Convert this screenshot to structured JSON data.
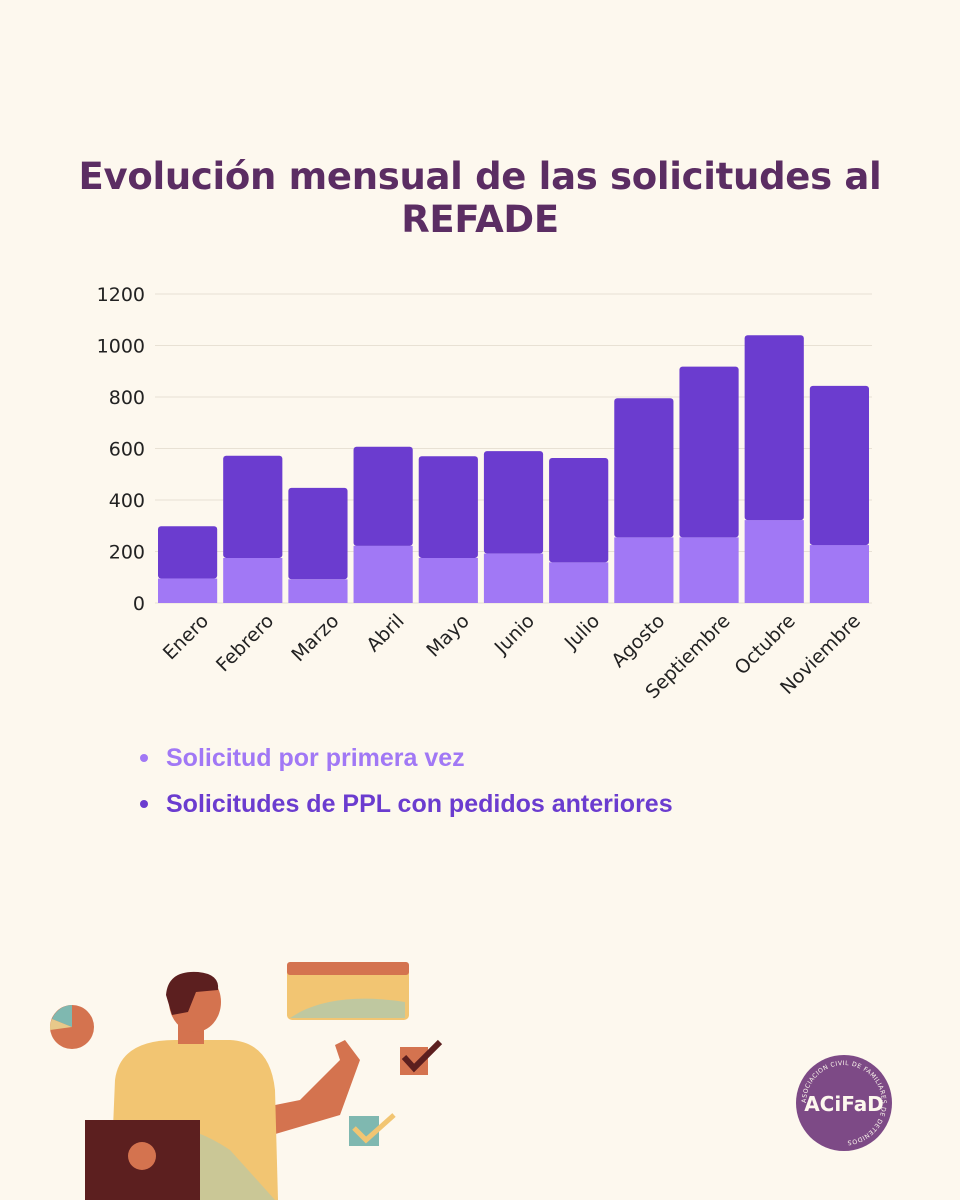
{
  "chart_data": {
    "type": "bar",
    "stacked": true,
    "title": "Evolución mensual de las solicitudes al REFADE",
    "categories": [
      "Enero",
      "Febrero",
      "Marzo",
      "Abril",
      "Mayo",
      "Junio",
      "Julio",
      "Agosto",
      "Septiembre",
      "Octubre",
      "Noviembre"
    ],
    "series": [
      {
        "name": "Solicitud por primera vez",
        "color": "#a178f5",
        "values": [
          95,
          175,
          92,
          222,
          175,
          192,
          158,
          255,
          255,
          322,
          225
        ]
      },
      {
        "name": "Solicitudes de PPL con pedidos anteriores",
        "color": "#6b3ccf",
        "values": [
          203,
          397,
          355,
          385,
          395,
          398,
          405,
          540,
          663,
          718,
          618
        ]
      }
    ],
    "yticks": [
      "0",
      "200",
      "400",
      "600",
      "800",
      "1000",
      "1200"
    ],
    "ylim": [
      0,
      1200
    ],
    "grid": true,
    "legend_position": "bottom-left"
  },
  "logo": {
    "text": "ACiFaD",
    "ring_text": "ASOCIACION CIVIL DE FAMILIARES DE DETENIDOS"
  }
}
